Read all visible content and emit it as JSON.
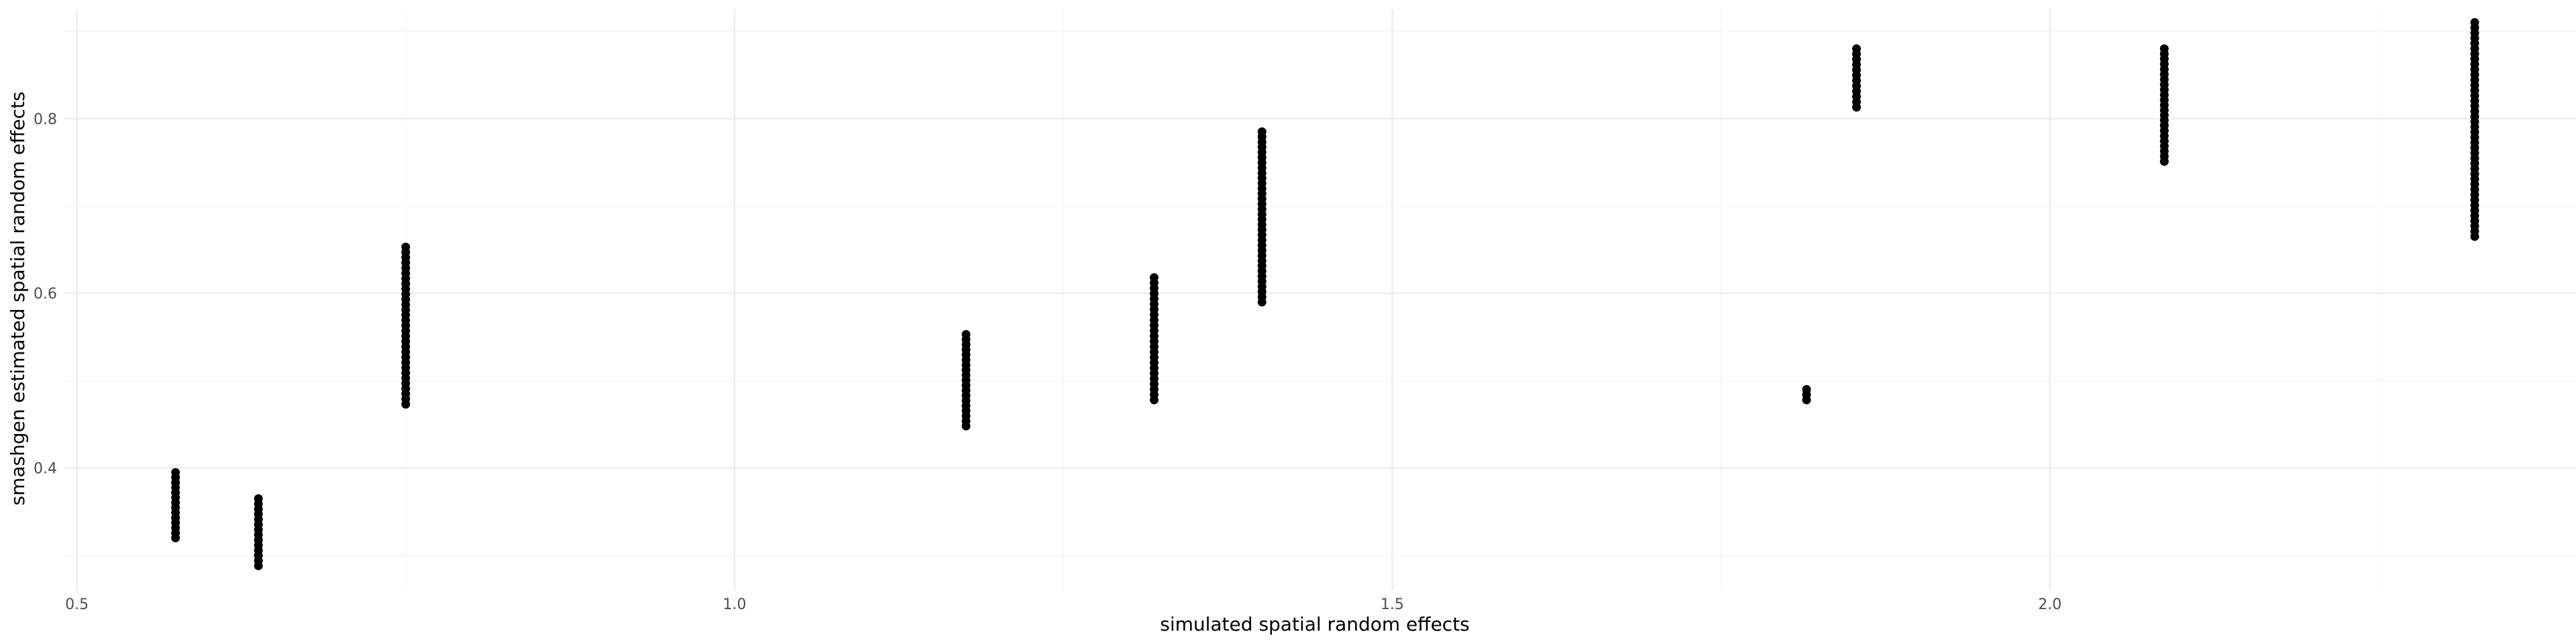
{
  "chart_data": {
    "type": "scatter",
    "title": "",
    "xlabel": "simulated spatial random effects",
    "ylabel": "smashgen estimated spatial random effects",
    "xlim": [
      0.49,
      2.4
    ],
    "ylim": [
      0.26,
      0.925
    ],
    "x_ticks": [
      0.5,
      1.0,
      1.5,
      2.0
    ],
    "x_tick_labels": [
      "0.5",
      "1.0",
      "1.5",
      "2.0"
    ],
    "y_ticks": [
      0.4,
      0.6,
      0.8
    ],
    "y_tick_labels": [
      "0.4",
      "0.6",
      "0.8"
    ],
    "grid": true,
    "legend": "none",
    "point_color": "#000000",
    "clusters": [
      {
        "x": 0.575,
        "y_min": 0.32,
        "y_max": 0.395
      },
      {
        "x": 0.638,
        "y_min": 0.288,
        "y_max": 0.365
      },
      {
        "x": 0.75,
        "y_min": 0.473,
        "y_max": 0.653
      },
      {
        "x": 1.176,
        "y_min": 0.448,
        "y_max": 0.553
      },
      {
        "x": 1.319,
        "y_min": 0.478,
        "y_max": 0.618
      },
      {
        "x": 1.401,
        "y_min": 0.59,
        "y_max": 0.785
      },
      {
        "x": 1.815,
        "y_min": 0.478,
        "y_max": 0.49
      },
      {
        "x": 1.853,
        "y_min": 0.813,
        "y_max": 0.88
      },
      {
        "x": 2.087,
        "y_min": 0.751,
        "y_max": 0.88
      },
      {
        "x": 2.323,
        "y_min": 0.665,
        "y_max": 0.91
      }
    ]
  }
}
